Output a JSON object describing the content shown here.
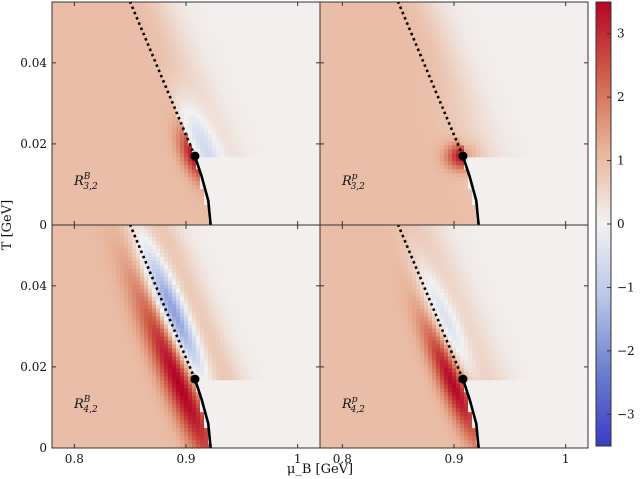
{
  "chart_data": {
    "type": "heatmap",
    "xlabel": "μ_B [GeV]",
    "ylabel": "T [GeV]",
    "xlim": [
      0.78,
      1.02
    ],
    "ylim": [
      0,
      0.055
    ],
    "x_ticks": [
      {
        "value": 0.8,
        "label": "0.8"
      },
      {
        "value": 0.9,
        "label": "0.9"
      },
      {
        "value": 1.0,
        "label": "1"
      }
    ],
    "y_ticks": [
      {
        "value": 0,
        "label": "0"
      },
      {
        "value": 0.02,
        "label": "0.02"
      },
      {
        "value": 0.04,
        "label": "0.04"
      }
    ],
    "colorbar": {
      "min": -3.5,
      "max": 3.5,
      "ticks": [
        3,
        2,
        1,
        0,
        -1,
        -2,
        -3
      ],
      "tick_labels": [
        "3",
        "2",
        "1",
        "0",
        "−1",
        "−2",
        "−3"
      ],
      "colormap": [
        "#3b3bc4",
        "#6b7fd0",
        "#b9c5e8",
        "#f2f2f2",
        "#e8b49a",
        "#d0604a",
        "#b40426"
      ]
    },
    "critical_point": {
      "mu_B": 0.908,
      "T": 0.017
    },
    "first_order_line": [
      [
        0.908,
        0.017
      ],
      [
        0.914,
        0.012
      ],
      [
        0.92,
        0.006
      ],
      [
        0.922,
        0.0
      ]
    ],
    "crossover_line": [
      [
        0.908,
        0.017
      ],
      [
        0.85,
        0.055
      ]
    ],
    "panels": [
      {
        "name": "R^B_{3,2}",
        "label": {
          "base": "R",
          "sup": "B",
          "sub": "3,2"
        }
      },
      {
        "name": "R^p_{3,2}",
        "label": {
          "base": "R",
          "sup": "p",
          "sub": "3,2"
        }
      },
      {
        "name": "R^B_{4,2}",
        "label": {
          "base": "R",
          "sup": "B",
          "sub": "4,2"
        }
      },
      {
        "name": "R^p_{4,2}",
        "label": {
          "base": "R",
          "sup": "p",
          "sub": "4,2"
        }
      }
    ],
    "grid": false
  },
  "colors": {
    "background_value_1": "#e9b9a3",
    "line": "#000000"
  }
}
